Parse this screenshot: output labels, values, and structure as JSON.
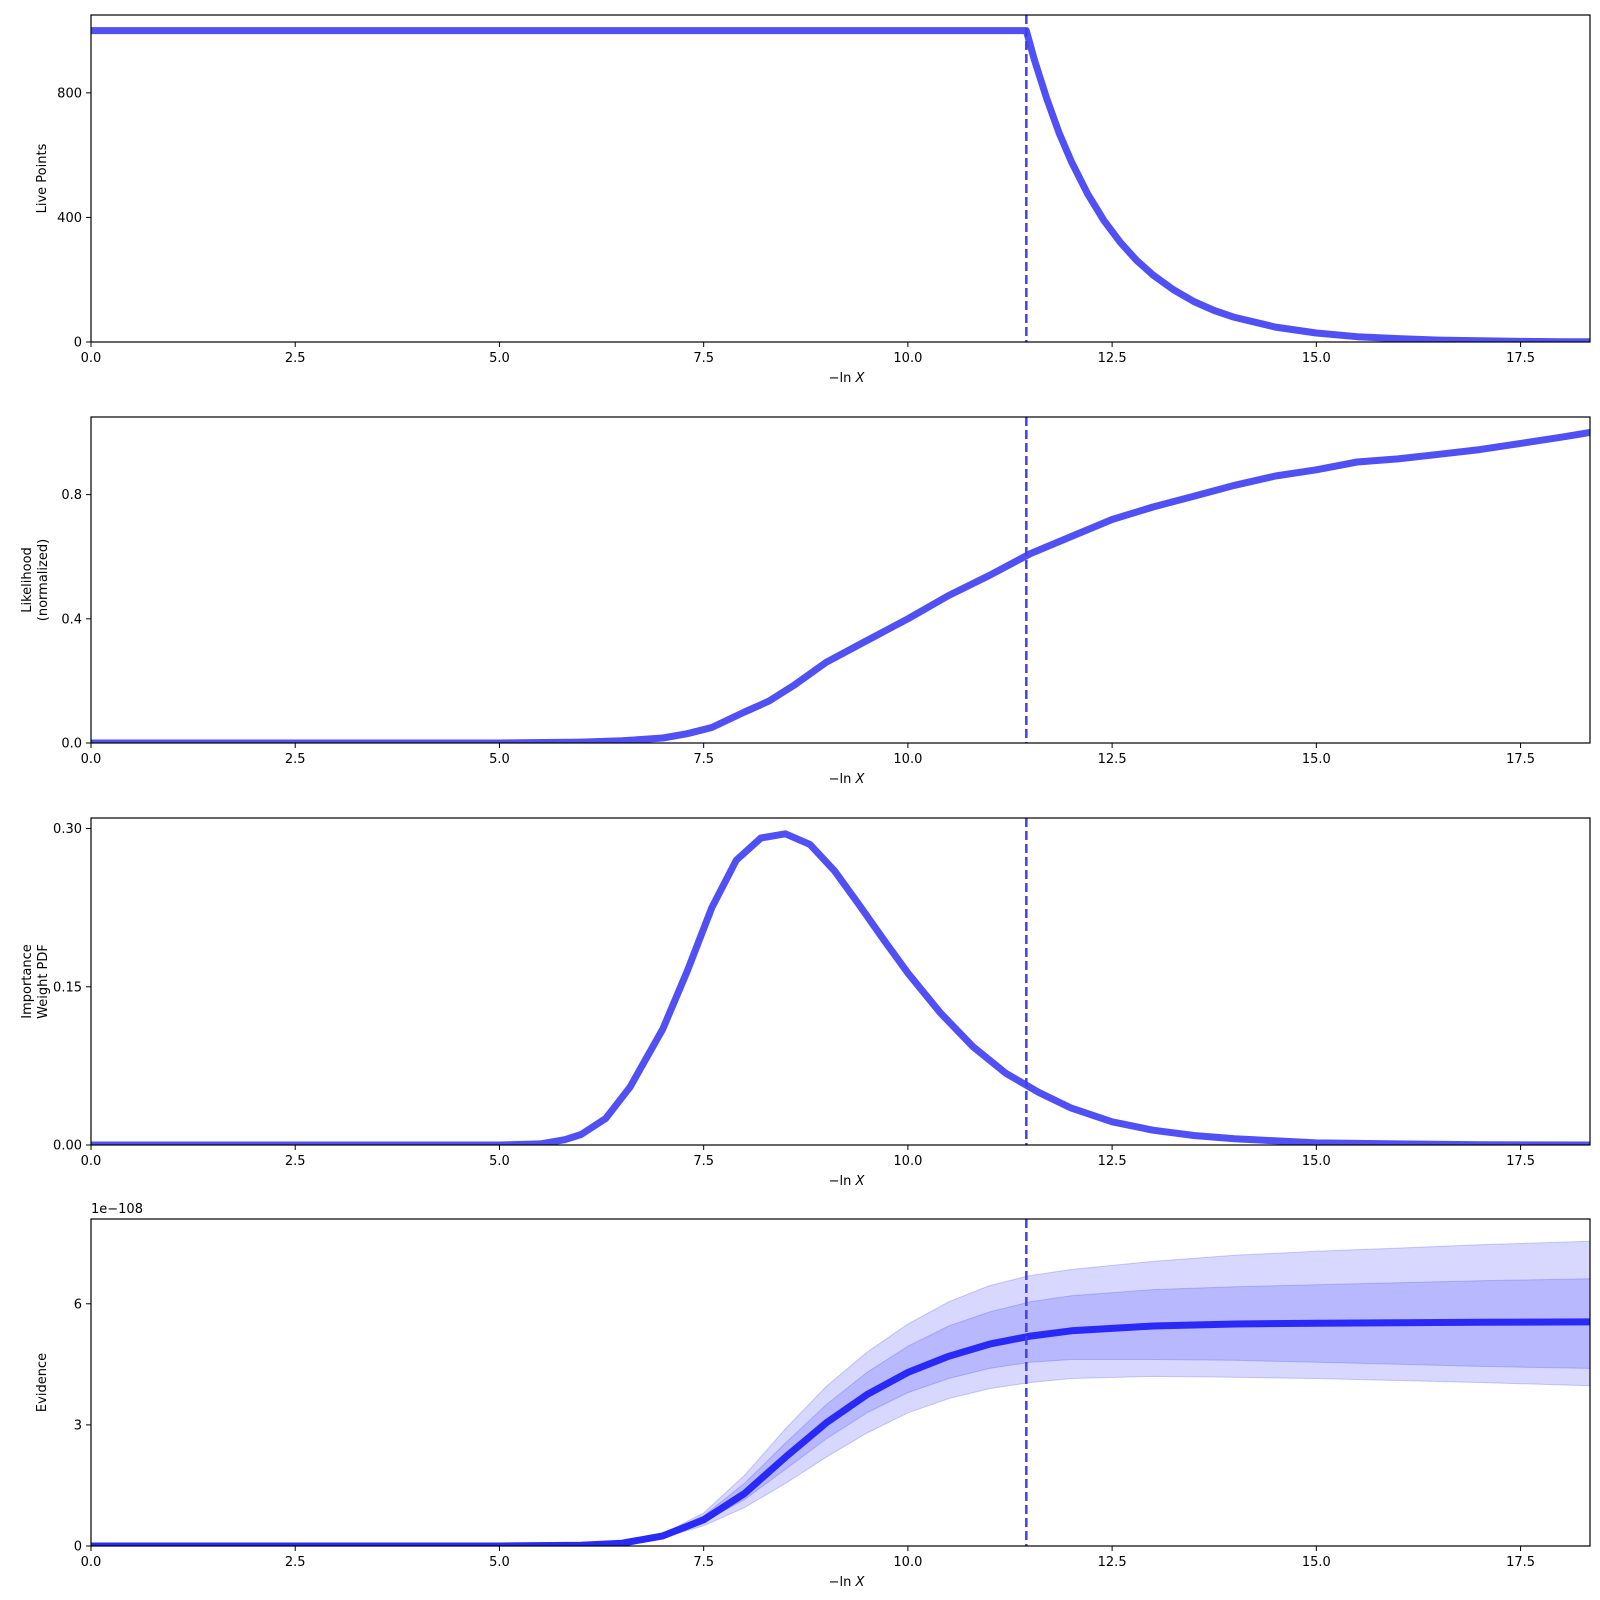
{
  "colors": {
    "line": "#5050f5",
    "evidence_line": "#2a2af8",
    "band": "#3c3cff",
    "marker": "#4040ee"
  },
  "chart_data": [
    {
      "type": "line",
      "xlabel_main": "−ln",
      "xlabel_var": "X",
      "ylabel": [
        "Live Points"
      ],
      "xlim": [
        0,
        18.35
      ],
      "ylim": [
        0,
        1050
      ],
      "xticks": [
        "0.0",
        "2.5",
        "5.0",
        "7.5",
        "10.0",
        "12.5",
        "15.0",
        "17.5"
      ],
      "yticks": [
        "0",
        "400",
        "800"
      ],
      "vline_x": 11.45,
      "x": [
        0,
        11.45,
        11.55,
        11.7,
        11.85,
        12.0,
        12.2,
        12.4,
        12.6,
        12.8,
        13.0,
        13.25,
        13.5,
        13.75,
        14.0,
        14.5,
        15.0,
        15.5,
        16.0,
        16.5,
        17.0,
        17.5,
        18.0,
        18.35
      ],
      "values": [
        1000,
        1000,
        905,
        781,
        672,
        580,
        476,
        390,
        320,
        262,
        215,
        168,
        130,
        101,
        79,
        48,
        29,
        17,
        11,
        6,
        4,
        2,
        1,
        1
      ]
    },
    {
      "type": "line",
      "xlabel_main": "−ln",
      "xlabel_var": "X",
      "ylabel": [
        "Likelihood",
        "(normalized)"
      ],
      "xlim": [
        0,
        18.35
      ],
      "ylim": [
        0,
        1.05
      ],
      "xticks": [
        "0.0",
        "2.5",
        "5.0",
        "7.5",
        "10.0",
        "12.5",
        "15.0",
        "17.5"
      ],
      "yticks": [
        "0.0",
        "0.4",
        "0.8"
      ],
      "vline_x": 11.45,
      "x": [
        0,
        5.0,
        6.0,
        6.5,
        7.0,
        7.3,
        7.6,
        8.0,
        8.3,
        8.6,
        9.0,
        9.5,
        10.0,
        10.5,
        11.0,
        11.5,
        12.0,
        12.5,
        13.0,
        13.5,
        14.0,
        14.5,
        15.0,
        15.5,
        16.0,
        16.5,
        17.0,
        17.5,
        18.0,
        18.35
      ],
      "values": [
        0,
        0,
        0.003,
        0.007,
        0.016,
        0.03,
        0.05,
        0.1,
        0.135,
        0.185,
        0.26,
        0.33,
        0.4,
        0.475,
        0.54,
        0.61,
        0.665,
        0.72,
        0.76,
        0.795,
        0.83,
        0.86,
        0.88,
        0.905,
        0.915,
        0.93,
        0.945,
        0.965,
        0.985,
        1.0
      ]
    },
    {
      "type": "line",
      "xlabel_main": "−ln",
      "xlabel_var": "X",
      "ylabel": [
        "Importance",
        "Weight PDF"
      ],
      "xlim": [
        0,
        18.35
      ],
      "ylim": [
        0,
        0.31
      ],
      "xticks": [
        "0.0",
        "2.5",
        "5.0",
        "7.5",
        "10.0",
        "12.5",
        "15.0",
        "17.5"
      ],
      "yticks": [
        "0.00",
        "0.15",
        "0.30"
      ],
      "vline_x": 11.45,
      "x": [
        0,
        5.0,
        5.5,
        5.8,
        6.0,
        6.3,
        6.6,
        7.0,
        7.3,
        7.6,
        7.9,
        8.2,
        8.5,
        8.8,
        9.1,
        9.4,
        9.7,
        10.0,
        10.4,
        10.8,
        11.2,
        11.6,
        12.0,
        12.5,
        13.0,
        13.5,
        14.0,
        15.0,
        16.0,
        17.0,
        18.35
      ],
      "values": [
        0,
        0,
        0.001,
        0.005,
        0.01,
        0.025,
        0.055,
        0.11,
        0.165,
        0.225,
        0.27,
        0.291,
        0.295,
        0.285,
        0.26,
        0.228,
        0.195,
        0.163,
        0.125,
        0.093,
        0.068,
        0.05,
        0.035,
        0.022,
        0.014,
        0.009,
        0.006,
        0.002,
        0.001,
        0.0003,
        0
      ]
    },
    {
      "type": "area",
      "xlabel_main": "−ln",
      "xlabel_var": "X",
      "ylabel": [
        "Evidence"
      ],
      "offset_text": "1e−108",
      "xlim": [
        0,
        18.35
      ],
      "ylim": [
        0,
        8.1
      ],
      "xticks": [
        "0.0",
        "2.5",
        "5.0",
        "7.5",
        "10.0",
        "12.5",
        "15.0",
        "17.5"
      ],
      "yticks": [
        "0",
        "3",
        "6"
      ],
      "vline_x": 11.45,
      "x": [
        0,
        5.0,
        6.0,
        6.5,
        7.0,
        7.5,
        8.0,
        8.5,
        9.0,
        9.5,
        10.0,
        10.5,
        11.0,
        11.5,
        12.0,
        13.0,
        14.0,
        15.0,
        16.0,
        17.0,
        18.35
      ],
      "series": [
        {
          "values": [
            0,
            0,
            0.02,
            0.07,
            0.25,
            0.65,
            1.3,
            2.2,
            3.05,
            3.75,
            4.3,
            4.7,
            5.0,
            5.2,
            5.33,
            5.45,
            5.5,
            5.52,
            5.53,
            5.54,
            5.55
          ]
        }
      ],
      "bands": [
        {
          "upper": [
            0,
            0,
            0.02,
            0.08,
            0.28,
            0.75,
            1.55,
            2.55,
            3.5,
            4.3,
            4.95,
            5.45,
            5.8,
            6.05,
            6.2,
            6.35,
            6.42,
            6.47,
            6.52,
            6.57,
            6.62
          ],
          "lower": [
            0,
            0,
            0.02,
            0.07,
            0.23,
            0.6,
            1.15,
            1.9,
            2.65,
            3.3,
            3.8,
            4.15,
            4.4,
            4.55,
            4.62,
            4.62,
            4.6,
            4.55,
            4.5,
            4.45,
            4.4
          ]
        },
        {
          "upper": [
            0,
            0,
            0.03,
            0.09,
            0.3,
            0.82,
            1.75,
            2.9,
            3.95,
            4.8,
            5.5,
            6.05,
            6.45,
            6.7,
            6.85,
            7.05,
            7.2,
            7.3,
            7.38,
            7.46,
            7.55
          ],
          "lower": [
            0,
            0,
            0.02,
            0.06,
            0.2,
            0.5,
            0.95,
            1.55,
            2.2,
            2.8,
            3.3,
            3.65,
            3.9,
            4.05,
            4.15,
            4.2,
            4.18,
            4.15,
            4.1,
            4.05,
            3.97
          ]
        }
      ]
    }
  ]
}
